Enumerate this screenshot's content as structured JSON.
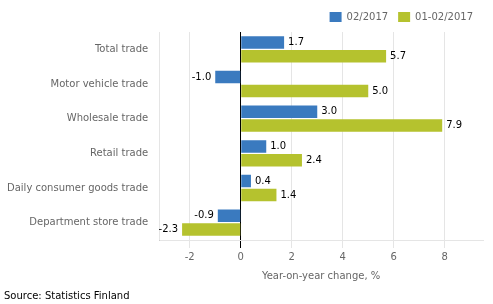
{
  "chart_data": {
    "type": "bar",
    "orientation": "horizontal",
    "categories": [
      "Total trade",
      "Motor vehicle trade",
      "Wholesale trade",
      "Retail trade",
      "Daily consumer goods trade",
      "Department store trade"
    ],
    "series": [
      {
        "name": "02/2017",
        "color": "#3a7abf",
        "values": [
          1.7,
          -1.0,
          3.0,
          1.0,
          0.4,
          -0.9
        ],
        "value_labels": [
          "1.7",
          "-1.0",
          "3.0",
          "1.0",
          "0.4",
          "-0.9"
        ]
      },
      {
        "name": "01-02/2017",
        "color": "#b5c22e",
        "values": [
          5.7,
          5.0,
          7.9,
          2.4,
          1.4,
          -2.3
        ],
        "value_labels": [
          "5.7",
          "5.0",
          "7.9",
          "2.4",
          "1.4",
          "-2.3"
        ]
      }
    ],
    "xlim": [
      -3.2,
      9.5
    ],
    "xticks": [
      -2,
      0,
      2,
      4,
      6,
      8
    ],
    "xlabel": "Year-on-year change, %",
    "annotations": [
      "Source: Statistics Finland"
    ],
    "grid": true,
    "legend": "upper right",
    "data_labels": true
  }
}
